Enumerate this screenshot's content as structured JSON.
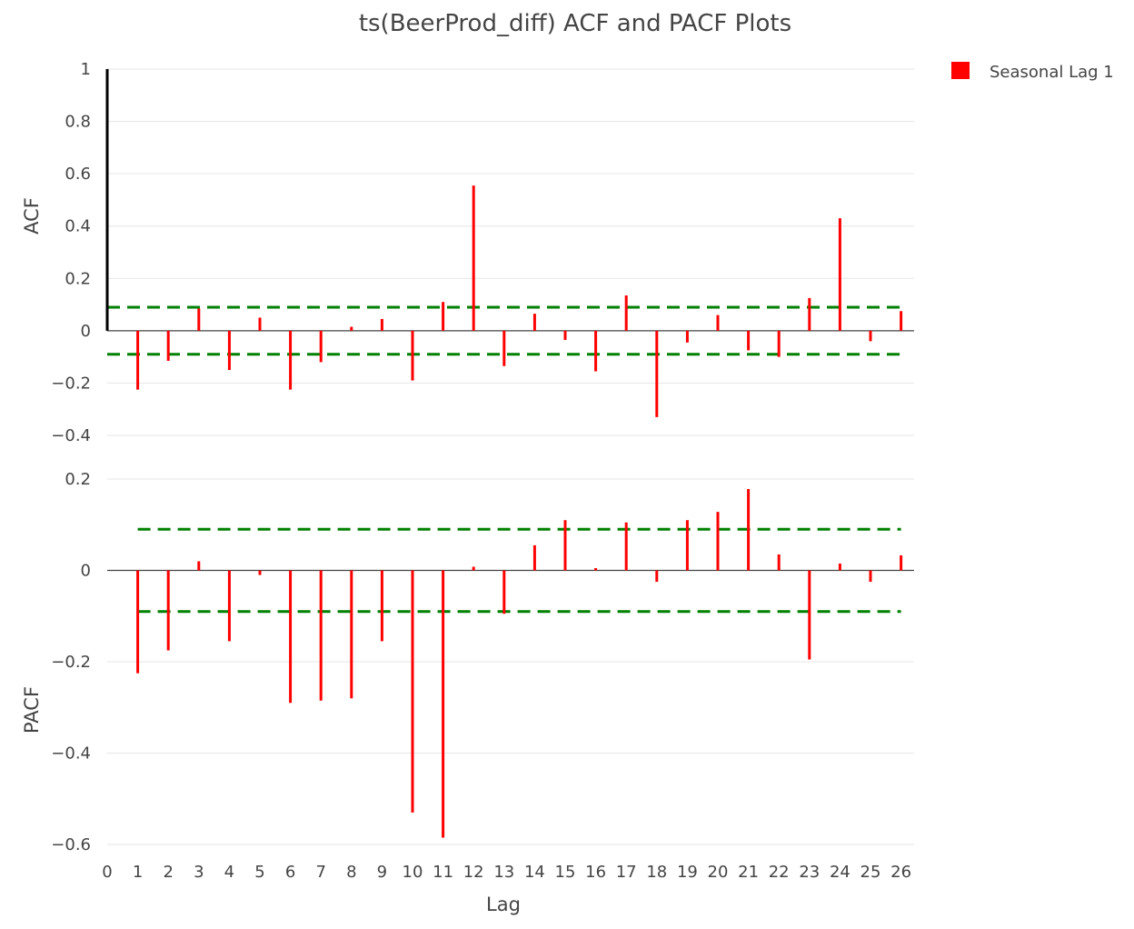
{
  "chart_data": {
    "title": "ts(BeerProd_diff) ACF and PACF Plots",
    "xlabel": "Lag",
    "x_ticks": [
      0,
      1,
      2,
      3,
      4,
      5,
      6,
      7,
      8,
      9,
      10,
      11,
      12,
      13,
      14,
      15,
      16,
      17,
      18,
      19,
      20,
      21,
      22,
      23,
      24,
      25,
      26
    ],
    "legend": {
      "label": "Seasonal Lag 1",
      "color": "#ff0000",
      "position": "top-right"
    },
    "colors": {
      "bars": "#ff0000",
      "lag0": "#000000",
      "bounds": "#008000"
    },
    "panels": [
      {
        "type": "bar",
        "name": "acf",
        "ylabel": "ACF",
        "ylim": [
          -0.44,
          1.0
        ],
        "y_ticks": [
          1,
          0.8,
          0.6,
          0.4,
          0.2,
          0,
          -0.2,
          -0.4
        ],
        "y_tick_labels": [
          "1",
          "0.8",
          "0.6",
          "0.4",
          "0.2",
          "0",
          "−0.2",
          "−0.4"
        ],
        "confidence_bound": 0.09,
        "lags": [
          0,
          1,
          2,
          3,
          4,
          5,
          6,
          7,
          8,
          9,
          10,
          11,
          12,
          13,
          14,
          15,
          16,
          17,
          18,
          19,
          20,
          21,
          22,
          23,
          24,
          25,
          26
        ],
        "values": [
          1.0,
          -0.225,
          -0.115,
          0.085,
          -0.15,
          0.05,
          -0.225,
          -0.12,
          0.015,
          0.045,
          -0.19,
          0.11,
          0.555,
          -0.135,
          0.065,
          -0.035,
          -0.155,
          0.135,
          -0.33,
          -0.045,
          0.06,
          -0.075,
          -0.1,
          0.125,
          0.43,
          -0.04,
          0.075
        ]
      },
      {
        "type": "bar",
        "name": "pacf",
        "ylabel": "PACF",
        "ylim": [
          -0.62,
          0.2
        ],
        "y_ticks": [
          0.2,
          0,
          -0.2,
          -0.4,
          -0.6
        ],
        "y_tick_labels": [
          "0.2",
          "0",
          "−0.2",
          "−0.4",
          "−0.6"
        ],
        "confidence_bound": 0.09,
        "lags": [
          1,
          2,
          3,
          4,
          5,
          6,
          7,
          8,
          9,
          10,
          11,
          12,
          13,
          14,
          15,
          16,
          17,
          18,
          19,
          20,
          21,
          22,
          23,
          24,
          25,
          26
        ],
        "values": [
          -0.225,
          -0.175,
          0.02,
          -0.155,
          -0.01,
          -0.29,
          -0.285,
          -0.28,
          -0.155,
          -0.53,
          -0.585,
          0.008,
          -0.095,
          0.055,
          0.11,
          0.005,
          0.105,
          -0.025,
          0.11,
          0.128,
          0.178,
          0.035,
          -0.195,
          0.015,
          -0.025,
          0.033
        ]
      }
    ]
  }
}
